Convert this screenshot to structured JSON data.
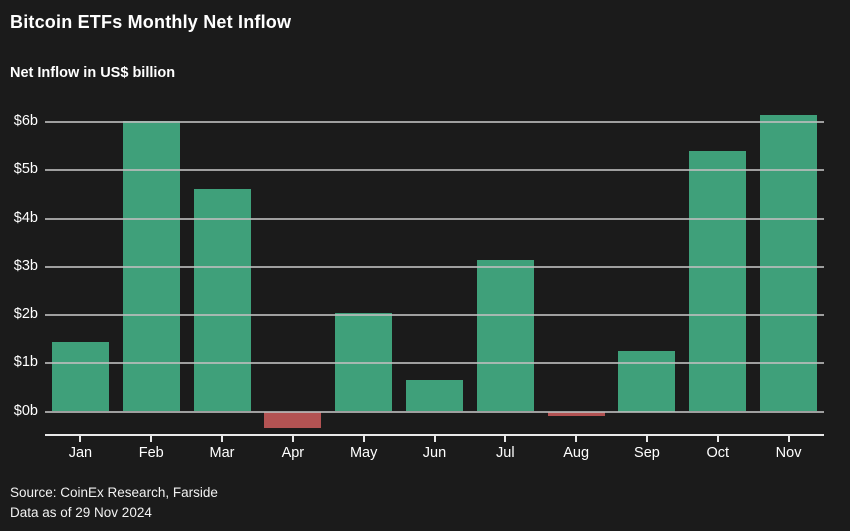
{
  "page": {
    "title": "Bitcoin ETFs Monthly Net Inflow",
    "subtitle": "Net Inflow in US$ billion",
    "source_line1": "Source: CoinEx Research, Farside",
    "source_line2": "Data as of 29 Nov 2024"
  },
  "colors": {
    "background": "#1b1b1b",
    "text": "#ffffff",
    "gridline": "#bdbdbd",
    "axis_line": "#e8e8e8",
    "positive_bar": "#3fa07a",
    "negative_bar": "#b35353"
  },
  "chart_data": {
    "type": "bar",
    "title": "Bitcoin ETFs Monthly Net Inflow",
    "subtitle": "Net Inflow in US$ billion",
    "categories": [
      "Jan",
      "Feb",
      "Mar",
      "Apr",
      "May",
      "Jun",
      "Jul",
      "Aug",
      "Sep",
      "Oct",
      "Nov"
    ],
    "values": [
      1.45,
      6.03,
      4.62,
      -0.35,
      2.05,
      0.65,
      3.15,
      -0.09,
      1.25,
      5.4,
      6.15
    ],
    "xlabel": "",
    "ylabel": "Net Inflow in US$ billion",
    "y_tick_labels": [
      "$0b",
      "$1b",
      "$2b",
      "$3b",
      "$4b",
      "$5b",
      "$6b"
    ],
    "y_tick_values": [
      0,
      1,
      2,
      3,
      4,
      5,
      6
    ],
    "ylim": [
      -0.5,
      6.4
    ],
    "grid": true,
    "gridlines_over_bars": true,
    "legend": "none",
    "positive_color": "#3fa07a",
    "negative_color": "#b35353",
    "source": "Source: CoinEx Research, Farside",
    "as_of": "Data as of 29 Nov 2024"
  }
}
